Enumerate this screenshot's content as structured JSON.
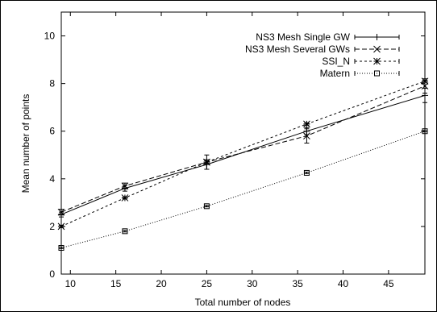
{
  "chart_data": {
    "type": "line",
    "xlabel": "Total number of nodes",
    "ylabel": "Mean number of points",
    "xlim": [
      9,
      49
    ],
    "ylim": [
      0,
      11
    ],
    "x_ticks": [
      10,
      15,
      20,
      25,
      30,
      35,
      40,
      45
    ],
    "y_ticks": [
      0,
      2,
      4,
      6,
      8,
      10
    ],
    "x_tick_labels": [
      "10",
      "15",
      "20",
      "25",
      "30",
      "35",
      "40",
      "45"
    ],
    "y_tick_labels": [
      "0",
      "2",
      "4",
      "6",
      "8",
      "10"
    ],
    "grid": false,
    "legend_position": "top-right",
    "x": [
      9,
      16,
      25,
      36,
      49
    ],
    "series": [
      {
        "name": "NS3 Mesh Single GW",
        "values": [
          2.5,
          3.6,
          4.6,
          6.0,
          7.5
        ],
        "errors": [
          0.1,
          0.12,
          0.2,
          0.15,
          0.3
        ],
        "marker": "plus",
        "dash": "solid",
        "color": "#000000"
      },
      {
        "name": "NS3 Mesh Several GWs",
        "values": [
          2.6,
          3.7,
          4.7,
          5.8,
          7.9
        ],
        "errors": [
          0.12,
          0.12,
          0.3,
          0.3,
          0.3
        ],
        "marker": "cross",
        "dash": "dashed",
        "color": "#000000"
      },
      {
        "name": "SSI_N",
        "values": [
          2.0,
          3.2,
          4.7,
          6.3,
          8.1
        ],
        "errors": [
          0.05,
          0.05,
          0.05,
          0.05,
          0.05
        ],
        "marker": "star",
        "dash": "shortdash",
        "color": "#000000"
      },
      {
        "name": "Matern",
        "values": [
          1.1,
          1.8,
          2.85,
          4.25,
          6.0
        ],
        "errors": [
          0.03,
          0.03,
          0.03,
          0.03,
          0.03
        ],
        "marker": "square",
        "dash": "dotted",
        "color": "#000000"
      }
    ]
  }
}
